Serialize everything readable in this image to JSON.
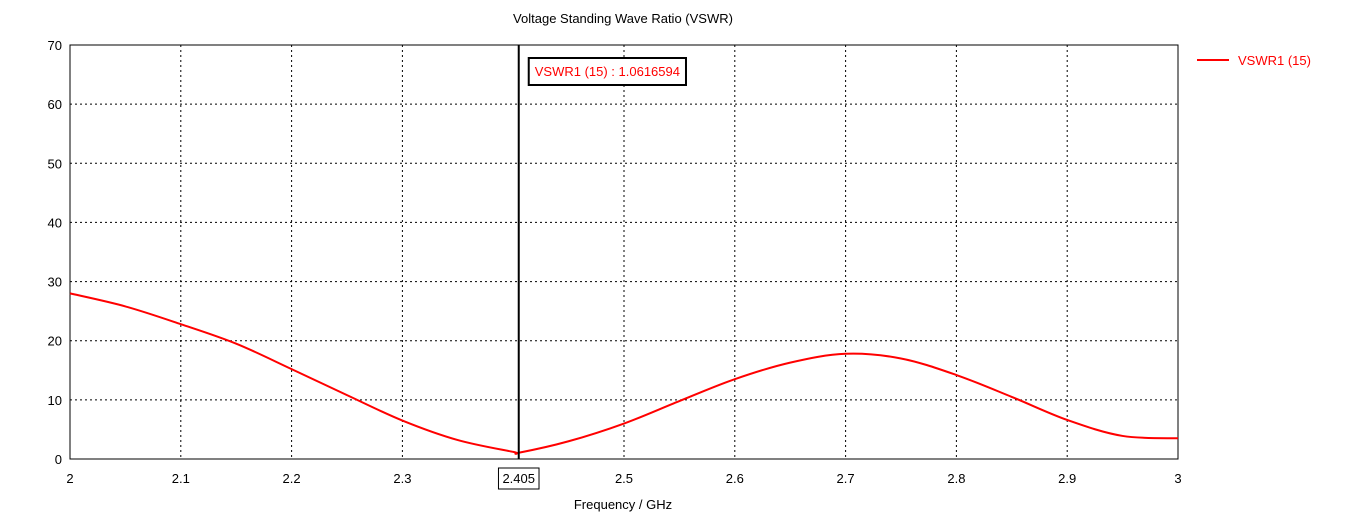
{
  "chart_data": {
    "type": "line",
    "title": "Voltage Standing Wave Ratio (VSWR)",
    "xlabel": "Frequency / GHz",
    "ylabel": "",
    "xlim": [
      2,
      3
    ],
    "ylim": [
      0,
      70
    ],
    "x_ticks": [
      "2",
      "2.1",
      "2.2",
      "2.3",
      "2.5",
      "2.6",
      "2.7",
      "2.8",
      "2.9",
      "3"
    ],
    "y_ticks": [
      "0",
      "10",
      "20",
      "30",
      "40",
      "50",
      "60",
      "70"
    ],
    "grid": true,
    "legend": "right",
    "series": [
      {
        "name": "VSWR1 (15)",
        "color": "#ff0000",
        "x": [
          2.0,
          2.05,
          2.1,
          2.15,
          2.2,
          2.25,
          2.3,
          2.35,
          2.4,
          2.405,
          2.45,
          2.5,
          2.55,
          2.6,
          2.65,
          2.7,
          2.75,
          2.8,
          2.85,
          2.9,
          2.95,
          3.0
        ],
        "values": [
          28.0,
          25.8,
          22.8,
          19.5,
          15.2,
          10.8,
          6.5,
          3.2,
          1.2,
          1.06,
          3.0,
          6.0,
          9.8,
          13.5,
          16.3,
          17.8,
          17.0,
          14.2,
          10.5,
          6.6,
          3.9,
          3.5
        ]
      }
    ],
    "marker": {
      "x_label": "2.405",
      "annotation": "VSWR1 (15) : 1.0616594",
      "x": 2.405
    }
  }
}
